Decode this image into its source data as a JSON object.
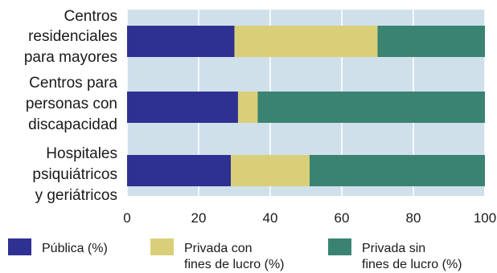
{
  "chart_data": {
    "type": "bar",
    "orientation": "horizontal",
    "stacked": true,
    "categories": [
      [
        "Centros",
        "residenciales",
        "para mayores"
      ],
      [
        "Centros para",
        "personas con",
        "discapacidad"
      ],
      [
        "Hospitales",
        "psiquiátricos",
        "y geriátricos"
      ]
    ],
    "series": [
      {
        "name": "Pública (%)",
        "legend_lines": [
          "Pública (%)"
        ],
        "color": "#2e3192",
        "values": [
          30,
          31,
          29
        ]
      },
      {
        "name": "Privada con fines de lucro (%)",
        "legend_lines": [
          "Privada con",
          "fines de lucro (%)"
        ],
        "color": "#d9cf78",
        "values": [
          40,
          5.5,
          22
        ]
      },
      {
        "name": "Privada sin fines de lucro (%)",
        "legend_lines": [
          "Privada sin",
          "fines de lucro (%)"
        ],
        "color": "#3a8372",
        "values": [
          30,
          63.5,
          49
        ]
      }
    ],
    "xlim": [
      0,
      100
    ],
    "xticks": [
      "0",
      "20",
      "40",
      "60",
      "80",
      "100"
    ],
    "grid": true,
    "plot_background": "#cfe0eb",
    "grid_color": "#ffffff",
    "legend_position": "bottom"
  }
}
